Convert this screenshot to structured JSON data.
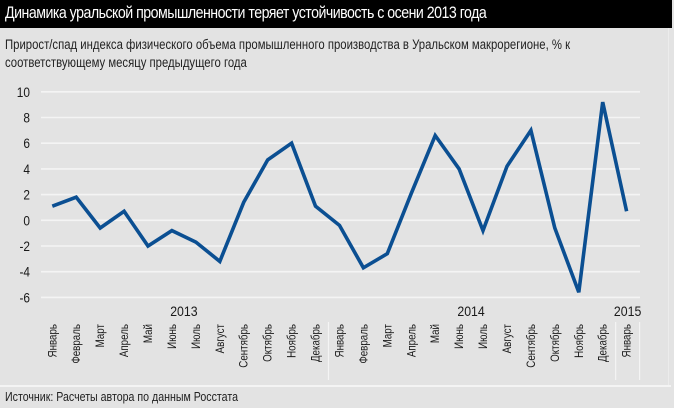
{
  "header": {
    "title": "Динамика уральской промышленности теряет устойчивость с осени 2013 года"
  },
  "subtitle": "Прирост/спад индекса физического объема промышленного производства в Уральском макрорегионе, % к соответствующему месяцу предыдущего года",
  "source": "Источник: Расчеты автора по данным Росстата",
  "colors": {
    "header_bg": "#000000",
    "background": "#e3e3e3",
    "line": "#0b4f92",
    "grid": "#f4f4f4"
  },
  "chart_data": {
    "type": "line",
    "title": "Динамика уральской промышленности теряет устойчивость с осени 2013 года",
    "subtitle": "Прирост/спад индекса физического объема промышленного производства в Уральском макрорегионе, % к соответствующему месяцу предыдущего года",
    "xlabel": "",
    "ylabel": "",
    "ylim": [
      -6,
      10
    ],
    "yticks": [
      10,
      8,
      6,
      4,
      2,
      0,
      -2,
      -4,
      -6
    ],
    "grid": true,
    "legend": null,
    "year_groups": [
      {
        "label": "2013",
        "start": 0,
        "end": 11
      },
      {
        "label": "2014",
        "start": 12,
        "end": 23
      },
      {
        "label": "2015",
        "start": 24,
        "end": 24
      }
    ],
    "categories": [
      "Январь",
      "Февраль",
      "Март",
      "Апрель",
      "Май",
      "Июнь",
      "Июль",
      "Август",
      "Сентябрь",
      "Октябрь",
      "Ноябрь",
      "Декабрь",
      "Январь",
      "Февраль",
      "Март",
      "Апрель",
      "Май",
      "Июнь",
      "Июль",
      "Август",
      "Сентябрь",
      "Октябрь",
      "Ноябрь",
      "Декабрь",
      "Январь"
    ],
    "series": [
      {
        "name": "Прирост/спад индекса, %",
        "values": [
          1.1,
          1.8,
          -0.6,
          0.7,
          -2.0,
          -0.8,
          -1.7,
          -3.2,
          1.4,
          4.7,
          6.0,
          1.1,
          -0.4,
          -3.7,
          -2.6,
          2.1,
          6.6,
          4.0,
          -0.8,
          4.2,
          7.0,
          -0.6,
          -5.6,
          9.2,
          0.7
        ]
      }
    ],
    "source": "Источник: Расчеты автора по данным Росстата"
  }
}
